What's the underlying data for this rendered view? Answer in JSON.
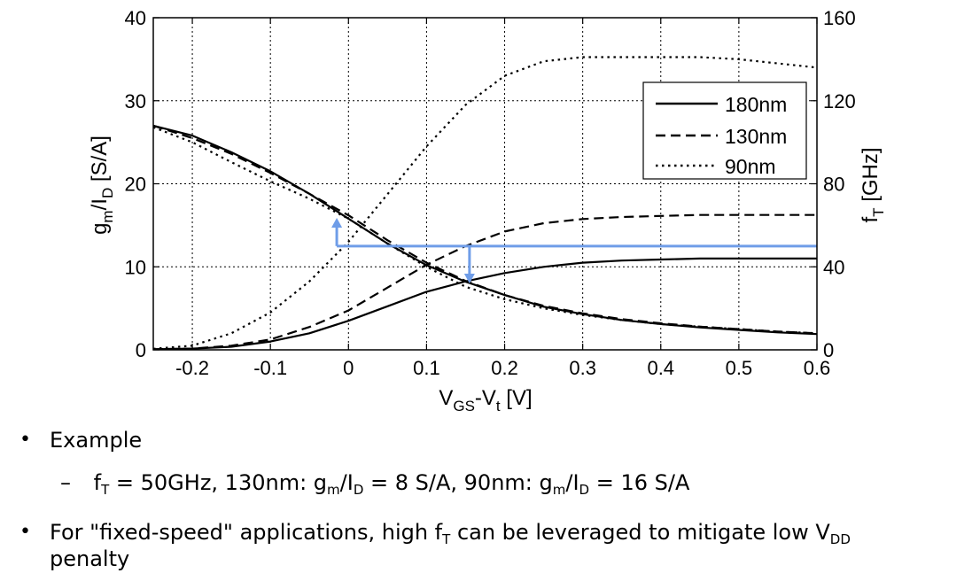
{
  "chart_data": {
    "type": "line",
    "x_axis": {
      "label_main": "V",
      "label_sub1": "GS",
      "label_mid": "-V",
      "label_sub2": "t",
      "label_tail": " [V]",
      "ticks": [
        -0.2,
        -0.1,
        0,
        0.1,
        0.2,
        0.3,
        0.4,
        0.5,
        0.6
      ],
      "tick_labels": [
        "-0.2",
        "-0.1",
        "0",
        "0.1",
        "0.2",
        "0.3",
        "0.4",
        "0.5",
        "0.6"
      ],
      "range": [
        -0.25,
        0.6
      ]
    },
    "y_left": {
      "label_a": "g",
      "label_sub_a": "m",
      "label_b": "/I",
      "label_sub_b": "D",
      "label_tail": " [S/A]",
      "ticks": [
        0,
        10,
        20,
        30,
        40
      ],
      "tick_labels": [
        "0",
        "10",
        "20",
        "30",
        "40"
      ],
      "range": [
        0,
        40
      ]
    },
    "y_right": {
      "label_a": "f",
      "label_sub_a": "T",
      "label_tail": " [GHz]",
      "ticks": [
        0,
        40,
        80,
        120,
        160
      ],
      "tick_labels": [
        "0",
        "40",
        "80",
        "120",
        "160"
      ],
      "range": [
        0,
        160
      ]
    },
    "grid": true,
    "legend_position": "top-right",
    "series": [
      {
        "name": "180nm",
        "style": "solid",
        "metric": "gm/ID",
        "axis": "left",
        "x": [
          -0.25,
          -0.2,
          -0.15,
          -0.1,
          -0.05,
          0,
          0.05,
          0.1,
          0.15,
          0.2,
          0.25,
          0.3,
          0.35,
          0.4,
          0.45,
          0.5,
          0.55,
          0.6
        ],
        "y": [
          27,
          25.8,
          23.8,
          21.5,
          18.8,
          15.8,
          12.8,
          10.2,
          8.2,
          6.6,
          5.2,
          4.3,
          3.6,
          3.1,
          2.7,
          2.4,
          2.1,
          1.9
        ]
      },
      {
        "name": "130nm",
        "style": "dashed",
        "metric": "gm/ID",
        "axis": "left",
        "x": [
          -0.25,
          -0.2,
          -0.15,
          -0.1,
          -0.05,
          0,
          0.05,
          0.1,
          0.15,
          0.2,
          0.25,
          0.3,
          0.35,
          0.4,
          0.45,
          0.5,
          0.55,
          0.6
        ],
        "y": [
          27,
          25.5,
          23.6,
          21.3,
          18.8,
          16.2,
          13.2,
          10.5,
          8.3,
          6.6,
          5.3,
          4.4,
          3.7,
          3.2,
          2.8,
          2.5,
          2.2,
          2.0
        ]
      },
      {
        "name": "90nm",
        "style": "dotted",
        "metric": "gm/ID",
        "axis": "left",
        "x": [
          -0.25,
          -0.2,
          -0.15,
          -0.1,
          -0.05,
          0,
          0.05,
          0.1,
          0.15,
          0.2,
          0.25,
          0.3,
          0.35,
          0.4,
          0.45,
          0.5,
          0.55,
          0.6
        ],
        "y": [
          26.8,
          25,
          22.6,
          20.3,
          18.2,
          15.8,
          12.8,
          10.0,
          7.6,
          6.1,
          5.0,
          4.2,
          3.6,
          3.1,
          2.8,
          2.5,
          2.2,
          2.0
        ]
      },
      {
        "name": "180nm",
        "style": "solid",
        "metric": "fT",
        "axis": "right",
        "x": [
          -0.25,
          -0.2,
          -0.15,
          -0.1,
          -0.05,
          0,
          0.05,
          0.1,
          0.15,
          0.2,
          0.25,
          0.3,
          0.35,
          0.4,
          0.45,
          0.5,
          0.55,
          0.6
        ],
        "y": [
          0.3,
          0.6,
          1.5,
          4,
          8,
          14,
          21,
          28,
          33,
          37,
          40,
          42,
          43,
          43.5,
          44,
          44,
          44,
          44
        ]
      },
      {
        "name": "130nm",
        "style": "dashed",
        "metric": "fT",
        "axis": "right",
        "x": [
          -0.25,
          -0.2,
          -0.15,
          -0.1,
          -0.05,
          0,
          0.05,
          0.1,
          0.15,
          0.2,
          0.25,
          0.3,
          0.35,
          0.4,
          0.45,
          0.5,
          0.55,
          0.6
        ],
        "y": [
          0.3,
          0.6,
          2,
          5,
          11,
          19,
          30,
          41,
          50,
          57,
          61,
          63,
          64,
          64.5,
          65,
          65,
          65,
          65
        ]
      },
      {
        "name": "90nm",
        "style": "dotted",
        "metric": "fT",
        "axis": "right",
        "x": [
          -0.25,
          -0.2,
          -0.15,
          -0.1,
          -0.05,
          0,
          0.05,
          0.1,
          0.15,
          0.2,
          0.25,
          0.3,
          0.35,
          0.4,
          0.45,
          0.5,
          0.55,
          0.6
        ],
        "y": [
          0.5,
          2,
          8,
          18,
          33,
          52,
          75,
          98,
          118,
          132,
          139,
          141,
          141,
          141,
          141,
          140,
          138,
          136
        ]
      }
    ],
    "annotation": {
      "color": "#6f9de8",
      "horizontal_line_y_right": 50,
      "horizontal_line_x_range": [
        -0.015,
        0.6
      ],
      "arrows": [
        {
          "x": -0.015,
          "from_y_left": 12.5,
          "to_y_left": 15.9,
          "direction": "up"
        },
        {
          "x": 0.155,
          "from_y_left": 12.5,
          "to_y_left": 8.0,
          "direction": "down"
        }
      ]
    }
  },
  "bullets": {
    "b1": {
      "marker": "•",
      "text": "Example"
    },
    "b1_sub": {
      "marker": "–",
      "p1": "f",
      "s1": "T",
      "p2": " = 50GHz, 130nm: g",
      "s2": "m",
      "p3": "/I",
      "s3": "D",
      "p4": " = 8 S/A, 90nm: g",
      "s4": "m",
      "p5": "/I",
      "s5": "D",
      "p6": " = 16 S/A"
    },
    "b2": {
      "marker": "•",
      "p1": "For \"fixed-speed\" applications, high f",
      "s1": "T",
      "p2": " can be leveraged to mitigate low V",
      "s2": "DD",
      "line2": "penalty"
    }
  }
}
